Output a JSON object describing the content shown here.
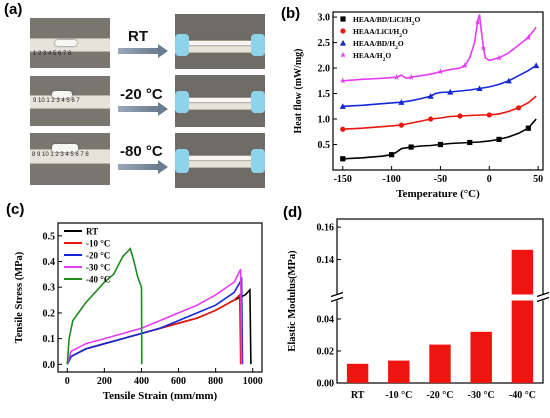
{
  "panel_labels": {
    "a": "(a)",
    "b": "(b)",
    "c": "(c)",
    "d": "(d)"
  },
  "panel_a": {
    "conditions": [
      "RT",
      "-20 °C",
      "-80 °C"
    ],
    "ruler_numbers": "1 2 3 4 5 6 7 8",
    "ruler_numbers_b": "9 10 1 2 3 4 5 6 7",
    "ruler_numbers_c": "8 9 10 1 2 3 4 5 6 7 8"
  },
  "chart_data": [
    {
      "type": "line",
      "title": "",
      "xlabel": "Temperature (°C)",
      "ylabel": "Heat flow (mW/mg)",
      "xlim": [
        -160,
        55
      ],
      "ylim": [
        0,
        3.1
      ],
      "xticks": [
        -150,
        -100,
        -50,
        0,
        50
      ],
      "yticks": [
        0.5,
        1.0,
        1.5,
        2.0,
        2.5,
        3.0
      ],
      "legend_position": "top-left",
      "series": [
        {
          "name": "HEAA/BD/LiCl/H2O",
          "color": "#000000",
          "x": [
            -150,
            -130,
            -110,
            -100,
            -95,
            -90,
            -80,
            -70,
            -60,
            -50,
            -40,
            -30,
            -20,
            -10,
            0,
            10,
            20,
            30,
            40,
            48
          ],
          "y": [
            0.22,
            0.24,
            0.27,
            0.3,
            0.35,
            0.42,
            0.45,
            0.47,
            0.48,
            0.5,
            0.52,
            0.53,
            0.54,
            0.55,
            0.57,
            0.6,
            0.65,
            0.72,
            0.82,
            1.0
          ]
        },
        {
          "name": "HEAA/LiCl/H2O",
          "color": "#e8160c",
          "x": [
            -150,
            -130,
            -110,
            -90,
            -80,
            -70,
            -60,
            -50,
            -40,
            -30,
            -20,
            -10,
            0,
            10,
            20,
            30,
            40,
            48
          ],
          "y": [
            0.8,
            0.82,
            0.85,
            0.88,
            0.92,
            0.96,
            1.0,
            1.02,
            1.05,
            1.06,
            1.07,
            1.08,
            1.08,
            1.1,
            1.15,
            1.22,
            1.32,
            1.45
          ]
        },
        {
          "name": "HEAA/BD/H2O",
          "color": "#1428d8",
          "x": [
            -150,
            -130,
            -110,
            -90,
            -80,
            -70,
            -60,
            -55,
            -50,
            -40,
            -30,
            -20,
            -10,
            0,
            10,
            20,
            30,
            40,
            48
          ],
          "y": [
            1.25,
            1.27,
            1.3,
            1.33,
            1.36,
            1.4,
            1.45,
            1.5,
            1.52,
            1.53,
            1.55,
            1.57,
            1.6,
            1.63,
            1.68,
            1.75,
            1.85,
            1.95,
            2.05
          ]
        },
        {
          "name": "HEAA/H2O",
          "color": "#e43cf0",
          "x": [
            -150,
            -130,
            -110,
            -95,
            -90,
            -85,
            -80,
            -70,
            -60,
            -50,
            -40,
            -30,
            -25,
            -20,
            -15,
            -12,
            -10,
            -8,
            -6,
            -4,
            0,
            10,
            20,
            30,
            40,
            48
          ],
          "y": [
            1.75,
            1.78,
            1.8,
            1.82,
            1.86,
            1.8,
            1.82,
            1.85,
            1.88,
            1.93,
            1.97,
            2.0,
            2.05,
            2.2,
            2.5,
            2.9,
            3.05,
            2.7,
            2.4,
            2.2,
            2.15,
            2.2,
            2.3,
            2.45,
            2.6,
            2.8
          ]
        }
      ]
    },
    {
      "type": "line",
      "title": "",
      "xlabel": "Tensile Strain (mm/mm)",
      "ylabel": "Tensile Stress (MPa)",
      "xlim": [
        -50,
        1050
      ],
      "ylim": [
        -0.03,
        0.55
      ],
      "xticks": [
        0,
        200,
        400,
        600,
        800,
        1000
      ],
      "yticks": [
        0.0,
        0.1,
        0.2,
        0.3,
        0.4,
        0.5
      ],
      "legend_position": "top-left",
      "series": [
        {
          "name": "RT",
          "color": "#000000",
          "x": [
            0,
            20,
            100,
            200,
            300,
            400,
            500,
            600,
            700,
            800,
            900,
            960,
            985,
            990
          ],
          "y": [
            0,
            0.03,
            0.06,
            0.08,
            0.1,
            0.12,
            0.14,
            0.16,
            0.18,
            0.21,
            0.25,
            0.27,
            0.29,
            0.0
          ]
        },
        {
          "name": "-10 °C",
          "color": "#e8160c",
          "x": [
            0,
            20,
            100,
            200,
            300,
            400,
            500,
            600,
            700,
            800,
            900,
            930,
            935
          ],
          "y": [
            0,
            0.03,
            0.06,
            0.08,
            0.1,
            0.12,
            0.14,
            0.16,
            0.18,
            0.21,
            0.25,
            0.27,
            0.0
          ]
        },
        {
          "name": "-20 °C",
          "color": "#1428d8",
          "x": [
            0,
            20,
            100,
            200,
            300,
            400,
            500,
            600,
            700,
            800,
            900,
            940,
            945
          ],
          "y": [
            0,
            0.03,
            0.06,
            0.08,
            0.1,
            0.12,
            0.14,
            0.17,
            0.2,
            0.23,
            0.28,
            0.33,
            0.0
          ]
        },
        {
          "name": "-30 °C",
          "color": "#e43cf0",
          "x": [
            0,
            20,
            100,
            200,
            300,
            400,
            500,
            600,
            700,
            800,
            900,
            935,
            940
          ],
          "y": [
            0,
            0.05,
            0.08,
            0.1,
            0.12,
            0.14,
            0.17,
            0.2,
            0.23,
            0.27,
            0.32,
            0.37,
            0.0
          ]
        },
        {
          "name": "-40 °C",
          "color": "#1e8c1e",
          "x": [
            0,
            10,
            30,
            60,
            100,
            150,
            200,
            250,
            300,
            340,
            360,
            380,
            400,
            402
          ],
          "y": [
            0,
            0.1,
            0.17,
            0.2,
            0.24,
            0.28,
            0.32,
            0.35,
            0.42,
            0.45,
            0.4,
            0.34,
            0.3,
            0.0
          ]
        }
      ]
    },
    {
      "type": "bar",
      "title": "",
      "xlabel": "",
      "ylabel": "Elastic Modulus(MPa)",
      "categories": [
        "RT",
        "-10 °C",
        "-20 °C",
        "-30 °C",
        "-40 °C"
      ],
      "values": [
        0.012,
        0.014,
        0.024,
        0.032,
        0.146
      ],
      "color": "#ee1410",
      "yticks_lower": [
        0.0,
        0.02,
        0.04
      ],
      "yticks_upper": [
        0.14,
        0.16
      ],
      "broken_axis": {
        "lower_max": 0.05,
        "upper_min": 0.12
      }
    }
  ]
}
